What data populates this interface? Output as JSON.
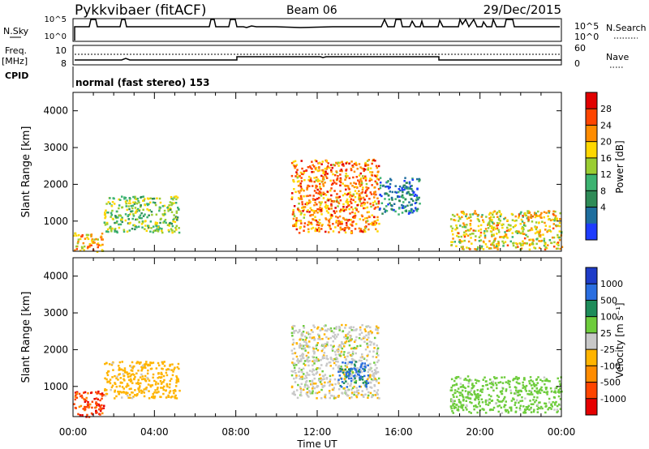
{
  "header": {
    "station": "Pykkvibaer (fitACF)",
    "beam": "Beam 06",
    "date": "29/Dec/2015"
  },
  "left_labels": {
    "nsky": "N.Sky",
    "freq": "Freq.",
    "freq_unit": "[MHz]",
    "cpid": "CPID"
  },
  "right_labels": {
    "nsearch": "N.Search",
    "nave": "Nave"
  },
  "nsky_ticks": [
    "10^5",
    "10^0"
  ],
  "nsearch_ticks": [
    "10^5",
    "10^0"
  ],
  "freq_ticks": [
    "10",
    "8"
  ],
  "nave_ticks": [
    "60",
    "0"
  ],
  "cpid_text": "normal (fast stereo) 153",
  "xaxis": {
    "label": "Time UT",
    "ticks": [
      "00:00",
      "04:00",
      "08:00",
      "12:00",
      "16:00",
      "20:00",
      "00:00"
    ]
  },
  "power_cbar": {
    "label": "Power [dB]",
    "ticks": [
      "28",
      "24",
      "20",
      "16",
      "12",
      "8",
      "4"
    ],
    "colors": [
      "#e10000",
      "#ff4500",
      "#ff8c00",
      "#ffd700",
      "#9acd32",
      "#3cb371",
      "#2e8b57",
      "#1e6e9e",
      "#1e3cff"
    ]
  },
  "velocity_cbar": {
    "label": "Velocity [m s⁻¹]",
    "ticks": [
      "1000",
      "500",
      "100",
      "25",
      "-25",
      "-100",
      "-500",
      "-1000"
    ],
    "colors": [
      "#1e3cc8",
      "#2a6ee0",
      "#1e8c5a",
      "#6ecc3c",
      "#c8c8c8",
      "#ffb400",
      "#ff8c00",
      "#ff4500",
      "#e60000"
    ]
  },
  "chart_data": [
    {
      "type": "heatmap",
      "title": "Beam 06",
      "xlabel": "Time UT",
      "ylabel": "Slant Range [km]",
      "ytick_labels": [
        "1000",
        "2000",
        "3000",
        "4000"
      ],
      "xlim": [
        "00:00",
        "24:00"
      ],
      "ylim": [
        180,
        4500
      ],
      "colorbar_label": "Power [dB]",
      "colorbar_range": [
        0,
        30
      ],
      "echo_regions": [
        {
          "t_start": 0.0,
          "t_end": 1.5,
          "r_start": 180,
          "r_end": 700,
          "value": 20
        },
        {
          "t_start": 1.5,
          "t_end": 5.2,
          "r_start": 700,
          "r_end": 1700,
          "value": 14
        },
        {
          "t_start": 10.7,
          "t_end": 15.0,
          "r_start": 700,
          "r_end": 2700,
          "value": 22
        },
        {
          "t_start": 15.0,
          "t_end": 17.0,
          "r_start": 1200,
          "r_end": 2200,
          "value": 6
        },
        {
          "t_start": 18.5,
          "t_end": 24.0,
          "r_start": 250,
          "r_end": 1300,
          "value": 18
        }
      ]
    },
    {
      "type": "heatmap",
      "xlabel": "Time UT",
      "ylabel": "Slant Range [km]",
      "ytick_labels": [
        "1000",
        "2000",
        "3000",
        "4000"
      ],
      "xlim": [
        "00:00",
        "24:00"
      ],
      "ylim": [
        180,
        4500
      ],
      "colorbar_label": "Velocity [m s⁻¹]",
      "colorbar_range": [
        -1000,
        1000
      ],
      "echo_regions": [
        {
          "t_start": 0.0,
          "t_end": 1.5,
          "r_start": 180,
          "r_end": 900,
          "value": -400
        },
        {
          "t_start": 1.5,
          "t_end": 5.2,
          "r_start": 700,
          "r_end": 1700,
          "value": -60
        },
        {
          "t_start": 10.7,
          "t_end": 15.0,
          "r_start": 700,
          "r_end": 2700,
          "value": 0
        },
        {
          "t_start": 13.0,
          "t_end": 14.5,
          "r_start": 1000,
          "r_end": 1700,
          "value": 300
        },
        {
          "t_start": 18.5,
          "t_end": 24.0,
          "r_start": 300,
          "r_end": 1300,
          "value": 60
        }
      ]
    }
  ]
}
